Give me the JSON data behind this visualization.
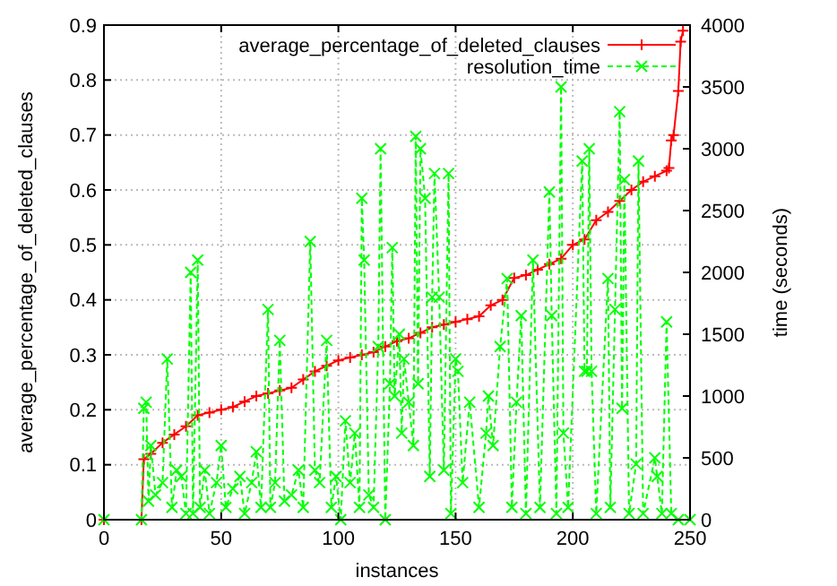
{
  "chart_data": {
    "type": "line",
    "xlabel": "instances",
    "ylabel": "average_percentage_of_deleted_clauses",
    "y2label": "time (seconds)",
    "xlim": [
      0,
      250
    ],
    "xticks": [
      0,
      50,
      100,
      150,
      200,
      250
    ],
    "ylim": [
      0,
      0.9
    ],
    "yticks": [
      0,
      0.1,
      0.2,
      0.3,
      0.4,
      0.5,
      0.6,
      0.7,
      0.8,
      0.9
    ],
    "y2lim": [
      0,
      4000
    ],
    "y2ticks": [
      0,
      500,
      1000,
      1500,
      2000,
      2500,
      3000,
      3500,
      4000
    ],
    "grid": true,
    "legend": "top right",
    "series": [
      {
        "name": "average_percentage_of_deleted_clauses",
        "color": "#ff0000",
        "marker": "cross",
        "line_style": "solid",
        "x": [
          0,
          16,
          17,
          20,
          25,
          30,
          35,
          40,
          45,
          50,
          55,
          60,
          65,
          70,
          75,
          80,
          85,
          90,
          95,
          100,
          105,
          110,
          115,
          120,
          125,
          130,
          135,
          140,
          145,
          150,
          155,
          160,
          165,
          170,
          175,
          180,
          185,
          190,
          195,
          200,
          205,
          210,
          215,
          220,
          225,
          230,
          235,
          240,
          241,
          242,
          243,
          245,
          246,
          247
        ],
        "values": [
          0,
          0,
          0.11,
          0.12,
          0.14,
          0.155,
          0.17,
          0.19,
          0.195,
          0.2,
          0.205,
          0.215,
          0.225,
          0.23,
          0.235,
          0.24,
          0.255,
          0.27,
          0.28,
          0.29,
          0.295,
          0.3,
          0.305,
          0.315,
          0.325,
          0.33,
          0.34,
          0.35,
          0.355,
          0.36,
          0.365,
          0.37,
          0.39,
          0.4,
          0.44,
          0.445,
          0.455,
          0.465,
          0.475,
          0.5,
          0.51,
          0.545,
          0.56,
          0.58,
          0.6,
          0.615,
          0.625,
          0.635,
          0.64,
          0.69,
          0.7,
          0.78,
          0.87,
          0.89
        ]
      },
      {
        "name": "resolution_time",
        "color": "#00ff00",
        "marker": "cross",
        "line_style": "dashed",
        "axis": "y2",
        "x": [
          0,
          16,
          17,
          18,
          19,
          20,
          22,
          25,
          27,
          29,
          31,
          33,
          35,
          37,
          38,
          40,
          41,
          43,
          45,
          48,
          50,
          52,
          55,
          58,
          60,
          63,
          65,
          67,
          70,
          71,
          73,
          75,
          77,
          80,
          83,
          85,
          88,
          90,
          92,
          95,
          97,
          99,
          101,
          103,
          105,
          107,
          109,
          110,
          111,
          113,
          115,
          117,
          118,
          120,
          122,
          123,
          124,
          126,
          127,
          128,
          130,
          132,
          133,
          134,
          135,
          137,
          139,
          140,
          141,
          143,
          145,
          147,
          148,
          150,
          151,
          153,
          156,
          160,
          163,
          164,
          166,
          169,
          172,
          174,
          176,
          178,
          180,
          183,
          186,
          190,
          191,
          193,
          195,
          196,
          198,
          204,
          205,
          206,
          207,
          208,
          210,
          215,
          216,
          218,
          220,
          221,
          222,
          224,
          227,
          228,
          230,
          235,
          236,
          238,
          240,
          242,
          245,
          250
        ],
        "values": [
          0,
          0,
          900,
          950,
          150,
          600,
          200,
          300,
          1300,
          100,
          400,
          350,
          50,
          2000,
          50,
          2100,
          100,
          400,
          50,
          300,
          600,
          100,
          250,
          350,
          50,
          300,
          550,
          100,
          1700,
          100,
          300,
          1450,
          150,
          200,
          400,
          100,
          2250,
          400,
          300,
          1450,
          100,
          350,
          0,
          800,
          300,
          700,
          100,
          2600,
          2100,
          200,
          100,
          1400,
          3000,
          0,
          1100,
          2200,
          1000,
          1500,
          700,
          1300,
          950,
          600,
          3100,
          1100,
          3000,
          2600,
          350,
          1800,
          2800,
          1800,
          400,
          2800,
          50,
          1300,
          1200,
          300,
          950,
          100,
          700,
          1000,
          600,
          1400,
          1950,
          100,
          950,
          1650,
          50,
          2100,
          100,
          2650,
          1650,
          50,
          3500,
          700,
          100,
          2900,
          1200,
          1200,
          3000,
          1200,
          50,
          1950,
          100,
          1700,
          3300,
          900,
          2750,
          50,
          450,
          2900,
          50,
          500,
          350,
          50,
          1600,
          50,
          0,
          0
        ]
      }
    ]
  }
}
